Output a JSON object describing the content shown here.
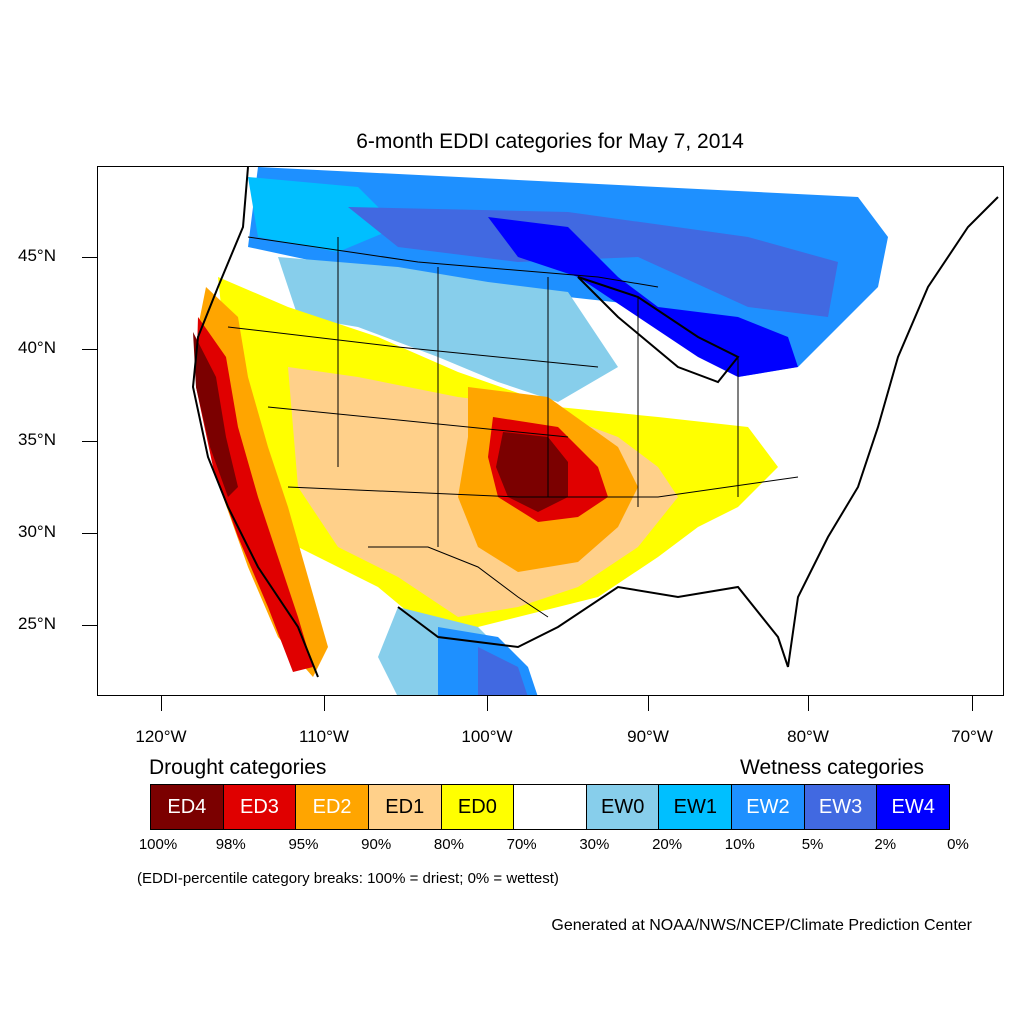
{
  "title": "6-month EDDI categories for May 7, 2014",
  "lat_labels": [
    "45°N",
    "40°N",
    "35°N",
    "30°N",
    "25°N"
  ],
  "lon_labels": [
    "120°W",
    "110°W",
    "100°W",
    "90°W",
    "80°W",
    "70°W"
  ],
  "legend": {
    "drought_heading": "Drought categories",
    "wetness_heading": "Wetness categories",
    "categories": [
      {
        "label": "ED4",
        "color": "#7b0000",
        "text_color": "#ffffff"
      },
      {
        "label": "ED3",
        "color": "#e00000",
        "text_color": "#ffffff"
      },
      {
        "label": "ED2",
        "color": "#ffa500",
        "text_color": "#ffffff"
      },
      {
        "label": "ED1",
        "color": "#ffd08a",
        "text_color": "#000000"
      },
      {
        "label": "ED0",
        "color": "#ffff00",
        "text_color": "#000000"
      },
      {
        "label": "",
        "color": "#ffffff",
        "text_color": "#000000"
      },
      {
        "label": "EW0",
        "color": "#87ceeb",
        "text_color": "#000000"
      },
      {
        "label": "EW1",
        "color": "#00bfff",
        "text_color": "#000000"
      },
      {
        "label": "EW2",
        "color": "#1e90ff",
        "text_color": "#ffffff"
      },
      {
        "label": "EW3",
        "color": "#4169e1",
        "text_color": "#ffffff"
      },
      {
        "label": "EW4",
        "color": "#0000ff",
        "text_color": "#ffffff"
      }
    ],
    "breaks": [
      "100%",
      "98%",
      "95%",
      "90%",
      "80%",
      "70%",
      "30%",
      "20%",
      "10%",
      "5%",
      "2%",
      "0%"
    ]
  },
  "note": "(EDDI-percentile category breaks: 100% = driest; 0% = wettest)",
  "credit": "Generated at NOAA/NWS/NCEP/Climate Prediction Center"
}
